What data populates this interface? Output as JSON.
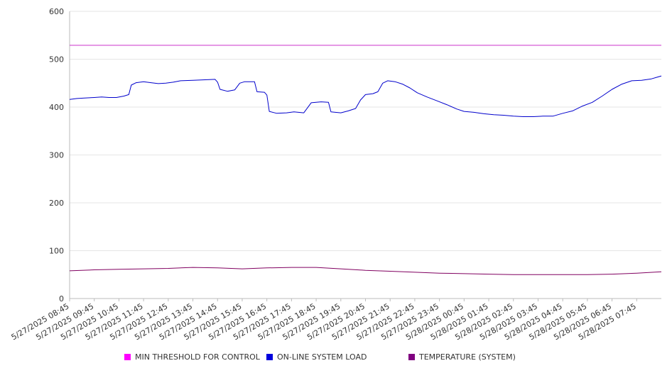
{
  "chart_data": {
    "type": "line",
    "grid": true,
    "legend_position": "bottom",
    "ylim": [
      0,
      600
    ],
    "y_ticks": [
      "0",
      "100",
      "200",
      "300",
      "400",
      "500",
      "600"
    ],
    "x_ticks": [
      "5/27/2025 08:45",
      "5/27/2025 09:45",
      "5/27/2025 10:45",
      "5/27/2025 11:45",
      "5/27/2025 12:45",
      "5/27/2025 13:45",
      "5/27/2025 14:45",
      "5/27/2025 15:45",
      "5/27/2025 16:45",
      "5/27/2025 17:45",
      "5/27/2025 18:45",
      "5/27/2025 19:45",
      "5/27/2025 20:45",
      "5/27/2025 21:45",
      "5/27/2025 22:45",
      "5/27/2025 23:45",
      "5/28/2025 00:45",
      "5/28/2025 01:45",
      "5/28/2025 02:45",
      "5/28/2025 03:45",
      "5/28/2025 04:45",
      "5/28/2025 05:45",
      "5/28/2025 06:45",
      "5/28/2025 07:45"
    ],
    "x_range_hours": [
      0,
      24
    ],
    "series": [
      {
        "name": "MIN THRESHOLD FOR CONTROL",
        "color": "#cc33cc",
        "legend_color": "#ff00ff",
        "points": [
          [
            0,
            529
          ],
          [
            24,
            529
          ]
        ]
      },
      {
        "name": "ON-LINE SYSTEM LOAD",
        "color": "#0000cc",
        "legend_color": "#0000dd",
        "points": [
          [
            0,
            416
          ],
          [
            0.3,
            418
          ],
          [
            0.6,
            419
          ],
          [
            1.0,
            420
          ],
          [
            1.3,
            421
          ],
          [
            1.6,
            420
          ],
          [
            1.9,
            420
          ],
          [
            2.2,
            423
          ],
          [
            2.4,
            426
          ],
          [
            2.5,
            446
          ],
          [
            2.7,
            451
          ],
          [
            3.0,
            453
          ],
          [
            3.3,
            451
          ],
          [
            3.6,
            449
          ],
          [
            3.9,
            450
          ],
          [
            4.2,
            452
          ],
          [
            4.5,
            455
          ],
          [
            5.0,
            456
          ],
          [
            5.5,
            457
          ],
          [
            5.9,
            458
          ],
          [
            6.0,
            452
          ],
          [
            6.1,
            437
          ],
          [
            6.4,
            433
          ],
          [
            6.7,
            436
          ],
          [
            6.9,
            450
          ],
          [
            7.1,
            453
          ],
          [
            7.5,
            453
          ],
          [
            7.6,
            432
          ],
          [
            7.9,
            431
          ],
          [
            8.0,
            425
          ],
          [
            8.1,
            391
          ],
          [
            8.4,
            387
          ],
          [
            8.8,
            388
          ],
          [
            9.1,
            390
          ],
          [
            9.5,
            388
          ],
          [
            9.8,
            409
          ],
          [
            10.2,
            411
          ],
          [
            10.5,
            410
          ],
          [
            10.6,
            390
          ],
          [
            11.0,
            388
          ],
          [
            11.3,
            392
          ],
          [
            11.6,
            397
          ],
          [
            11.8,
            415
          ],
          [
            12.0,
            426
          ],
          [
            12.3,
            428
          ],
          [
            12.5,
            432
          ],
          [
            12.7,
            450
          ],
          [
            12.9,
            455
          ],
          [
            13.2,
            453
          ],
          [
            13.5,
            448
          ],
          [
            13.8,
            440
          ],
          [
            14.1,
            430
          ],
          [
            14.5,
            421
          ],
          [
            14.9,
            413
          ],
          [
            15.3,
            405
          ],
          [
            15.7,
            396
          ],
          [
            16.0,
            391
          ],
          [
            16.4,
            389
          ],
          [
            16.8,
            386
          ],
          [
            17.2,
            384
          ],
          [
            17.6,
            383
          ],
          [
            18.0,
            381
          ],
          [
            18.4,
            380
          ],
          [
            18.8,
            380
          ],
          [
            19.2,
            381
          ],
          [
            19.6,
            381
          ],
          [
            20.0,
            387
          ],
          [
            20.4,
            392
          ],
          [
            20.8,
            402
          ],
          [
            21.2,
            410
          ],
          [
            21.6,
            423
          ],
          [
            22.0,
            437
          ],
          [
            22.4,
            448
          ],
          [
            22.8,
            455
          ],
          [
            23.2,
            456
          ],
          [
            23.6,
            459
          ],
          [
            23.8,
            462
          ],
          [
            24,
            465
          ]
        ]
      },
      {
        "name": "TEMPERATURE (SYSTEM)",
        "color": "#800060",
        "legend_color": "#800080",
        "points": [
          [
            0,
            58
          ],
          [
            1,
            60
          ],
          [
            2,
            61
          ],
          [
            3,
            62
          ],
          [
            4,
            63
          ],
          [
            5,
            65
          ],
          [
            6,
            64
          ],
          [
            7,
            62
          ],
          [
            8,
            64
          ],
          [
            9,
            65
          ],
          [
            10,
            65
          ],
          [
            11,
            62
          ],
          [
            12,
            59
          ],
          [
            13,
            57
          ],
          [
            14,
            55
          ],
          [
            15,
            53
          ],
          [
            16,
            52
          ],
          [
            17,
            51
          ],
          [
            18,
            50
          ],
          [
            19,
            50
          ],
          [
            20,
            50
          ],
          [
            21,
            50
          ],
          [
            22,
            51
          ],
          [
            23,
            53
          ],
          [
            24,
            56
          ]
        ]
      }
    ]
  }
}
